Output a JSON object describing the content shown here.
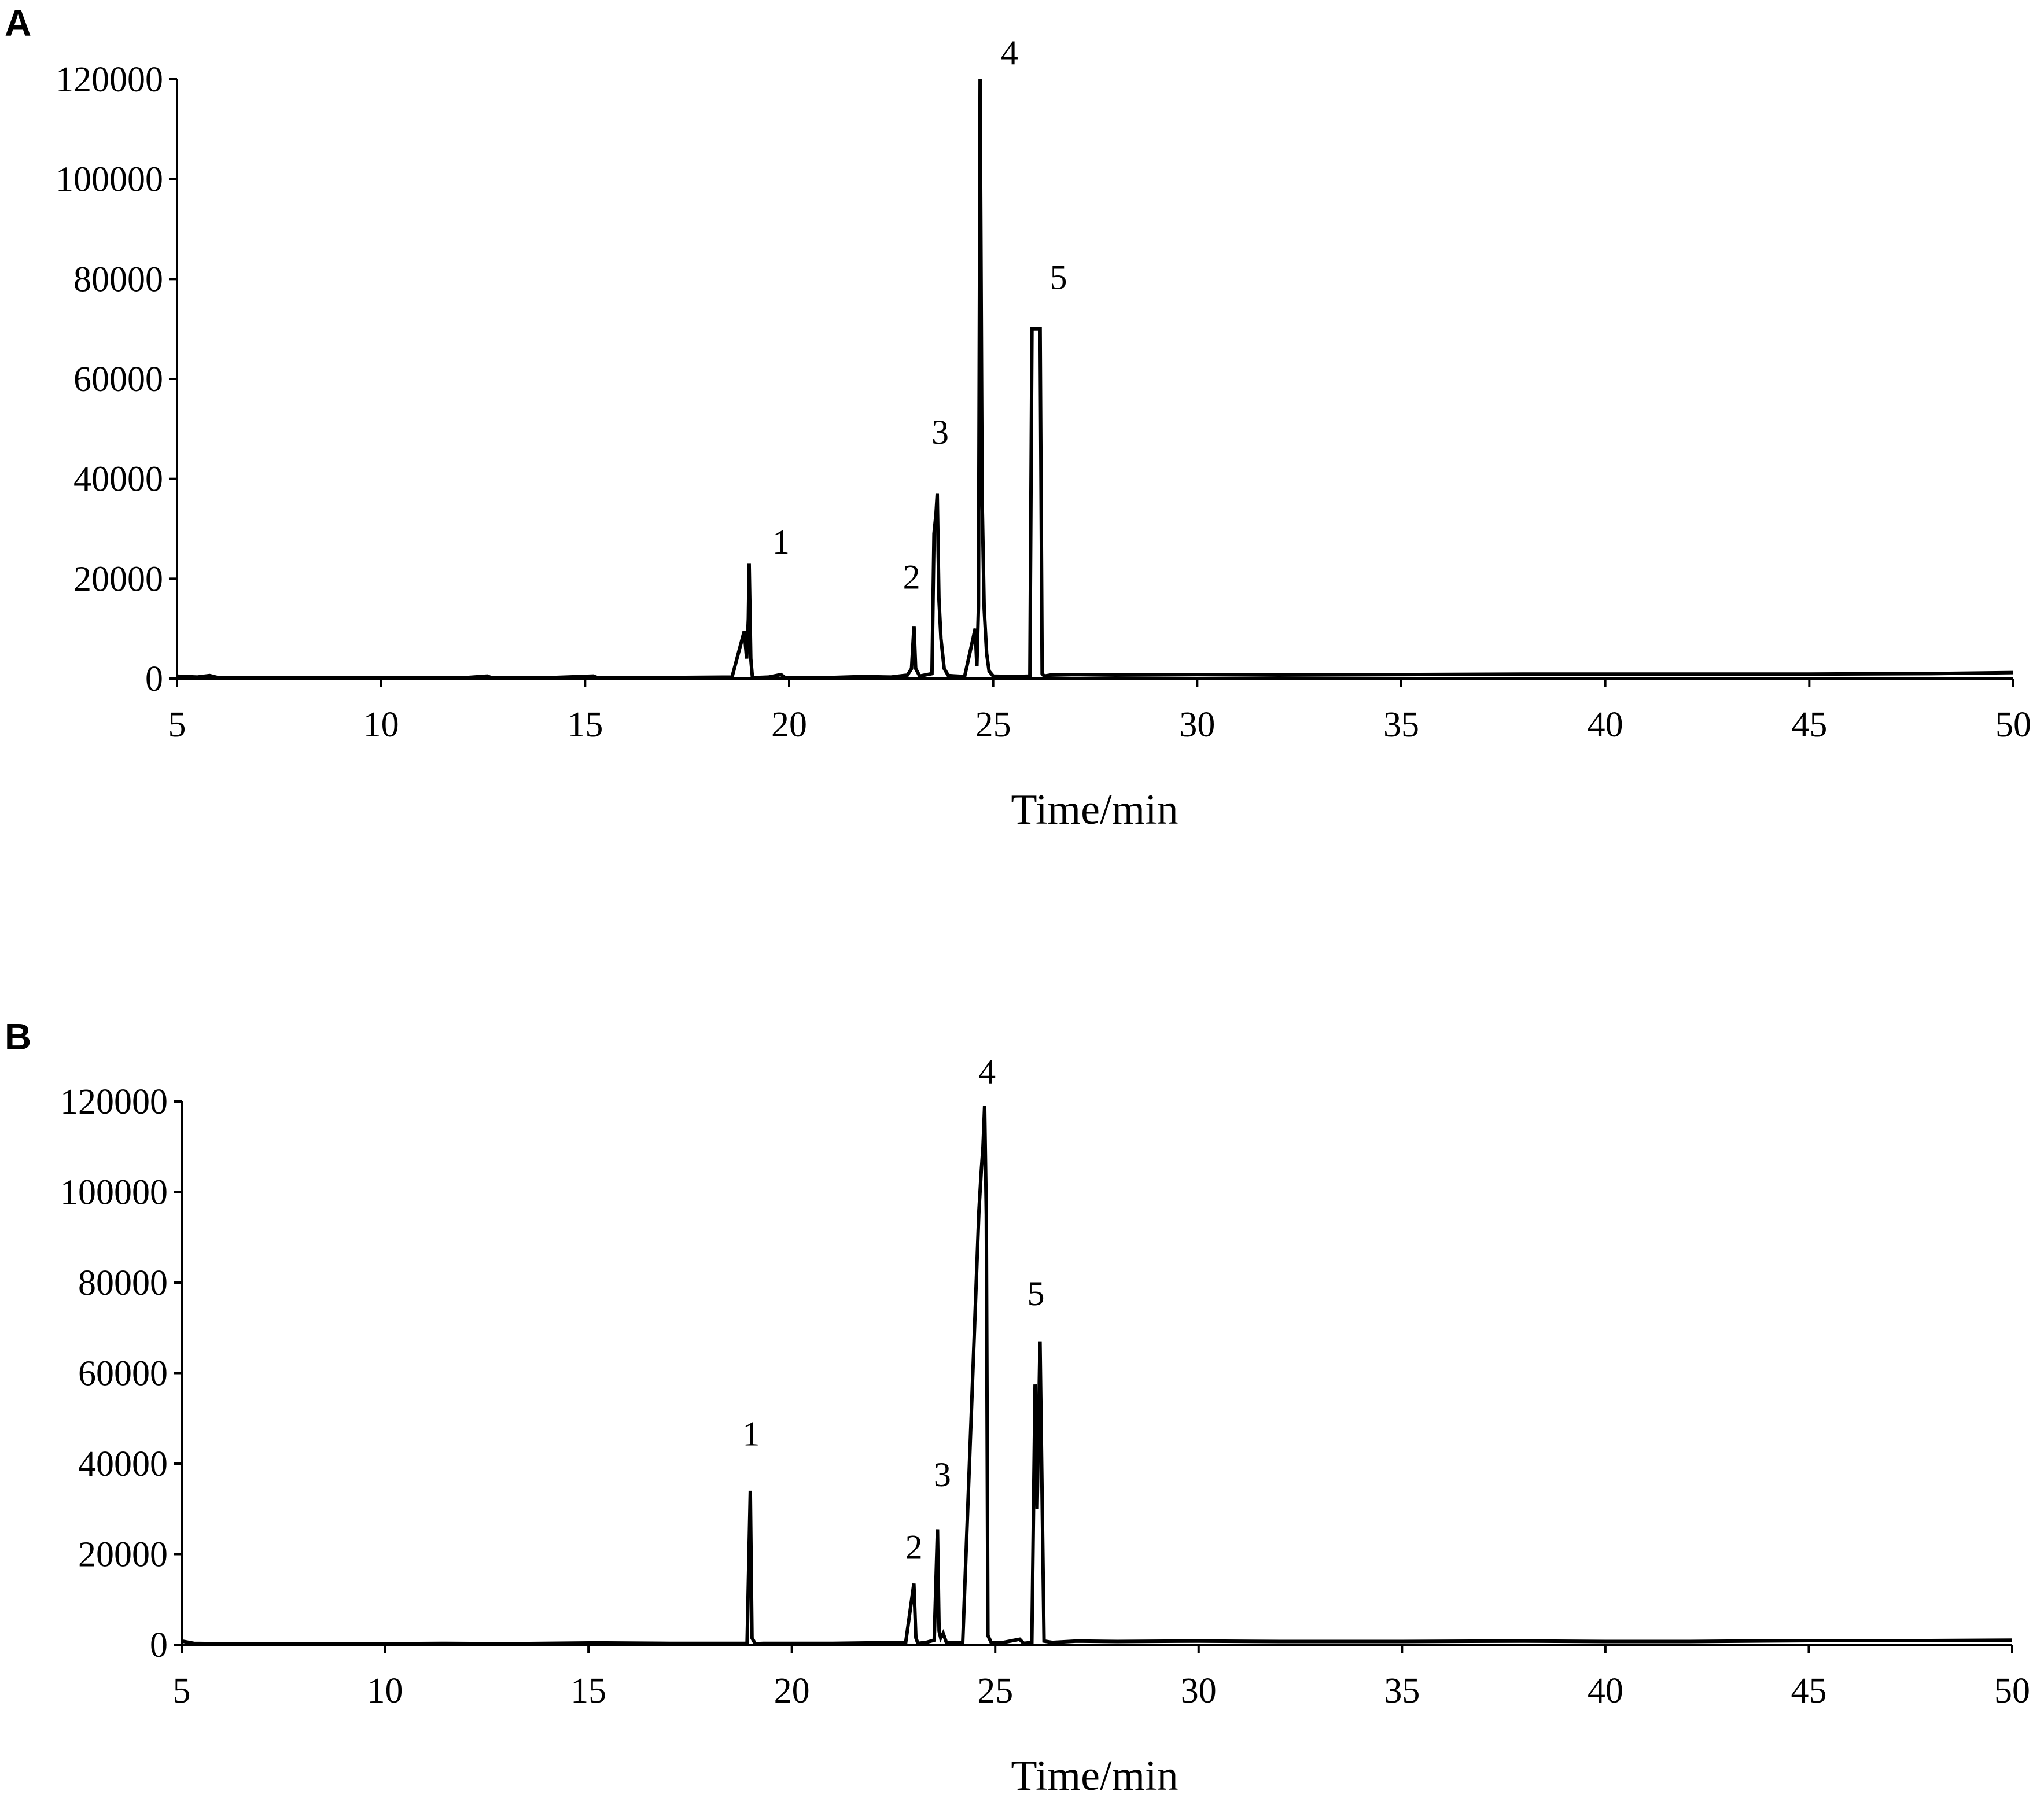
{
  "chart_data": [
    {
      "panel": "A",
      "type": "line",
      "xlabel": "Time/min",
      "ylabel": "",
      "xlim": [
        5,
        50
      ],
      "ylim": [
        0,
        120000
      ],
      "xticks": [
        "5",
        "10",
        "15",
        "20",
        "25",
        "30",
        "35",
        "40",
        "45",
        "50"
      ],
      "yticks": [
        "0",
        "20000",
        "40000",
        "60000",
        "80000",
        "100000",
        "120000"
      ],
      "line_color": "#000000",
      "series": [
        {
          "x": [
            5,
            5.2,
            5.5,
            5.8,
            6,
            7,
            8,
            10,
            12,
            12.6,
            12.7,
            14,
            15.2,
            15.3,
            17,
            18.6,
            18.9,
            18.96,
            19.0,
            19.02,
            19.06,
            19.1,
            19.2,
            19.5,
            19.8,
            19.9,
            21,
            21.8,
            22.5,
            22.9,
            23.0,
            23.06,
            23.1,
            23.2,
            23.5,
            23.55,
            23.6,
            23.63,
            23.67,
            23.72,
            23.8,
            23.9,
            24.3,
            24.56,
            24.6,
            24.64,
            24.68,
            24.73,
            24.78,
            24.84,
            24.9,
            25.0,
            25.5,
            25.9,
            25.95,
            26.0,
            26.05,
            26.15,
            26.2,
            26.25,
            26.4,
            27,
            28,
            30,
            32,
            35,
            38,
            40,
            42,
            45,
            48,
            49,
            50
          ],
          "y": [
            500,
            400,
            300,
            600,
            200,
            150,
            120,
            120,
            150,
            500,
            200,
            150,
            500,
            200,
            200,
            300,
            9500,
            4000,
            12000,
            23000,
            4000,
            300,
            200,
            300,
            800,
            200,
            200,
            400,
            300,
            700,
            2000,
            10500,
            2000,
            500,
            1000,
            29000,
            33000,
            37000,
            16000,
            8000,
            2000,
            600,
            400,
            10000,
            2500,
            14500,
            120000,
            36000,
            14000,
            5000,
            1500,
            500,
            400,
            500,
            70000,
            70000,
            70000,
            70000,
            1000,
            500,
            700,
            800,
            700,
            800,
            700,
            800,
            900,
            900,
            900,
            900,
            1000,
            1100,
            1200
          ]
        }
      ],
      "annotations": [
        {
          "text": "1",
          "x": 19.8,
          "y": 25000
        },
        {
          "text": "2",
          "x": 23.0,
          "y": 18000
        },
        {
          "text": "3",
          "x": 23.7,
          "y": 47000
        },
        {
          "text": "4",
          "x": 25.4,
          "y": 123000
        },
        {
          "text": "5",
          "x": 26.6,
          "y": 78000
        }
      ]
    },
    {
      "panel": "B",
      "type": "line",
      "xlabel": "Time/min",
      "ylabel": "",
      "xlim": [
        5,
        50
      ],
      "ylim": [
        0,
        120000
      ],
      "xticks": [
        "5",
        "10",
        "15",
        "20",
        "25",
        "30",
        "35",
        "40",
        "45",
        "50"
      ],
      "yticks": [
        "0",
        "20000",
        "40000",
        "60000",
        "80000",
        "100000",
        "120000"
      ],
      "line_color": "#000000",
      "series": [
        {
          "x": [
            5,
            5.3,
            6,
            8,
            10,
            11.5,
            13,
            15.2,
            17,
            18.9,
            18.98,
            19.02,
            19.1,
            19.3,
            21,
            22.8,
            23.0,
            23.05,
            23.1,
            23.3,
            23.5,
            23.58,
            23.62,
            23.66,
            23.72,
            23.8,
            24.2,
            24.6,
            24.66,
            24.7,
            24.74,
            24.78,
            24.82,
            24.9,
            25.2,
            25.6,
            25.7,
            25.9,
            25.98,
            26.03,
            26.1,
            26.2,
            26.4,
            27,
            28,
            30,
            32,
            35,
            38,
            40,
            42,
            45,
            48,
            50
          ],
          "y": [
            800,
            300,
            200,
            200,
            200,
            300,
            200,
            400,
            300,
            300,
            34000,
            1500,
            200,
            300,
            300,
            500,
            13500,
            1500,
            300,
            500,
            1000,
            25500,
            3000,
            1500,
            2500,
            500,
            400,
            96000,
            105000,
            110000,
            119000,
            95000,
            2000,
            500,
            500,
            1200,
            300,
            500,
            57500,
            30000,
            67000,
            800,
            500,
            800,
            700,
            800,
            700,
            700,
            800,
            700,
            700,
            900,
            900,
            1000
          ]
        }
      ],
      "annotations": [
        {
          "text": "1",
          "x": 19.0,
          "y": 44000
        },
        {
          "text": "2",
          "x": 23.0,
          "y": 19000
        },
        {
          "text": "3",
          "x": 23.7,
          "y": 35000
        },
        {
          "text": "4",
          "x": 24.8,
          "y": 124000
        },
        {
          "text": "5",
          "x": 26.0,
          "y": 75000
        }
      ]
    }
  ]
}
